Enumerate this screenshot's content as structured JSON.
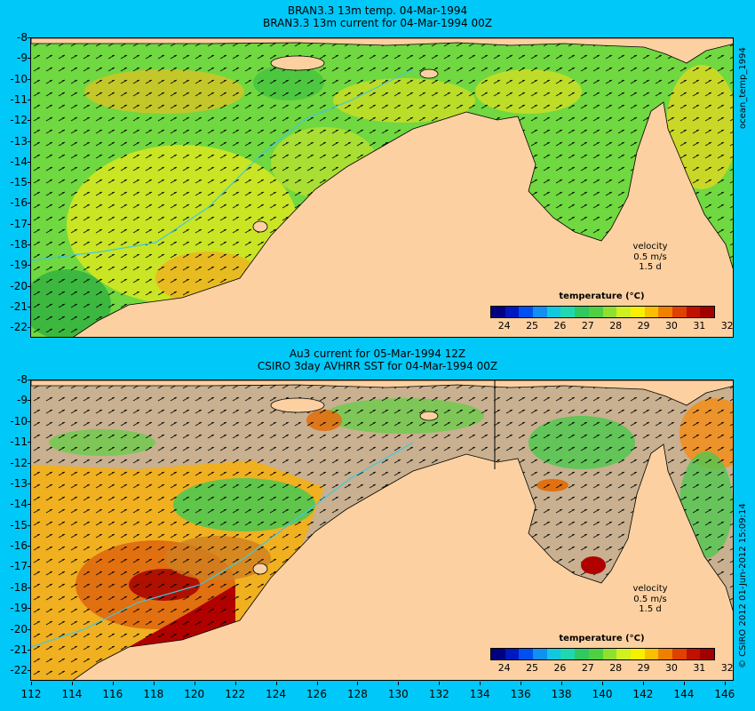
{
  "top": {
    "title_line1": "BRAN3.3 13m temp. 04-Mar-1994",
    "title_line2": "BRAN3.3 13m current for 04-Mar-1994 00Z",
    "side_label": "ocean_temp_1994",
    "velocity_label": "velocity",
    "velocity_value": "0.5 m/s",
    "velocity_time": "1.5 d",
    "colorbar_title": "temperature (°C)"
  },
  "bottom": {
    "title_line1": "Au3 current for 05-Mar-1994 12Z",
    "title_line2": "CSIRO 3day AVHRR SST for 04-Mar-1994 00Z",
    "side_label": "© CSIRO 2012   01-Jun-2012 15:09:14",
    "velocity_label": "velocity",
    "velocity_value": "0.5 m/s",
    "velocity_time": "1.5 d",
    "colorbar_title": "temperature (°C)"
  },
  "colorbar": {
    "ticks": [
      "24",
      "25",
      "26",
      "27",
      "28",
      "29",
      "30",
      "31",
      "32"
    ],
    "colors": [
      "#000080",
      "#0018c0",
      "#0050f0",
      "#1090f0",
      "#10c8e0",
      "#20d8b0",
      "#30c860",
      "#50d040",
      "#90e030",
      "#d0f020",
      "#f8f000",
      "#f8c000",
      "#f08000",
      "#e04000",
      "#c01000",
      "#a00000"
    ]
  },
  "y_axis_top": [
    "-8",
    "-9",
    "-10",
    "-11",
    "-12",
    "-13",
    "-14",
    "-15",
    "-16",
    "-17",
    "-18",
    "-19",
    "-20",
    "-21",
    "-22"
  ],
  "y_axis_bottom": [
    "-8",
    "-9",
    "-10",
    "-11",
    "-12",
    "-13",
    "-14",
    "-15",
    "-16",
    "-17",
    "-18",
    "-19",
    "-20",
    "-21",
    "-22"
  ],
  "x_axis": [
    "112",
    "114",
    "116",
    "118",
    "120",
    "122",
    "124",
    "126",
    "128",
    "130",
    "132",
    "134",
    "136",
    "138",
    "140",
    "142",
    "144",
    "146"
  ],
  "colors": {
    "background": "#00c8f8",
    "land": "#fcd0a0",
    "no_data": "#c8b090",
    "sea_green": "#60d040",
    "sea_yellow": "#e8e820",
    "sea_orange": "#f0a020",
    "sea_red": "#b00000"
  }
}
